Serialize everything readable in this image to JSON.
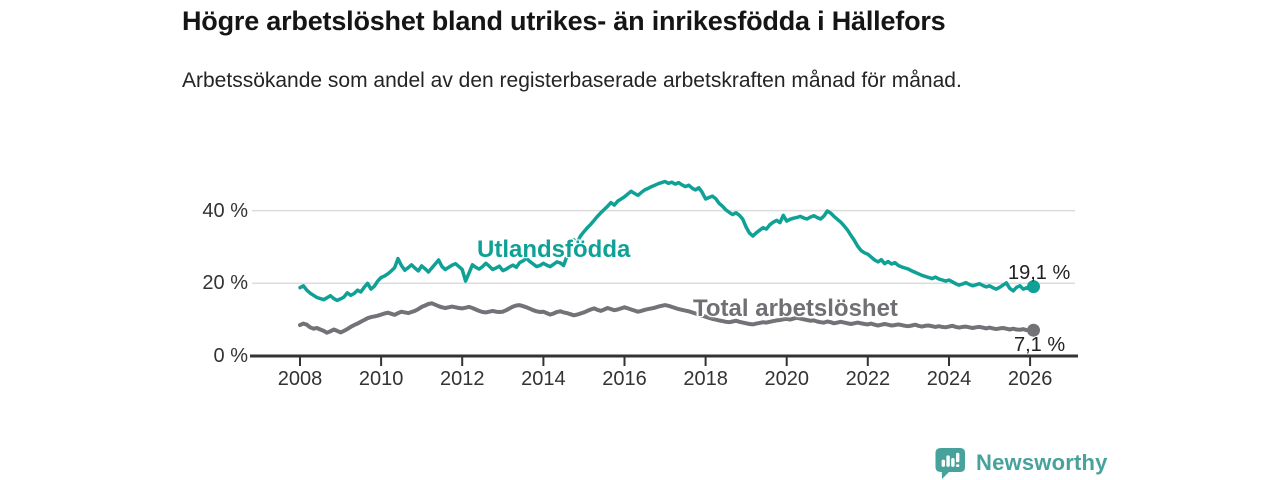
{
  "header": {
    "title": "Högre arbetslöshet bland utrikes- än inrikesfödda i Hällefors",
    "subtitle": "Arbetssökande som andel av den registerbaserade arbetskraften månad för månad."
  },
  "chart_data": {
    "type": "line",
    "title": "Högre arbetslöshet bland utrikes- än inrikesfödda i Hällefors",
    "subtitle": "Arbetssökande som andel av den registerbaserade arbetskraften månad för månad.",
    "x_axis": {
      "unit": "year",
      "range": [
        2008,
        2026.4
      ],
      "ticks": [
        2008,
        2010,
        2012,
        2014,
        2016,
        2018,
        2020,
        2022,
        2024,
        2026
      ]
    },
    "y_axis": {
      "unit": "%",
      "range": [
        0,
        52
      ],
      "gridlines": [
        20,
        40
      ],
      "ticks": [
        {
          "value": 0,
          "label": "0 %"
        },
        {
          "value": 20,
          "label": "20 %"
        },
        {
          "value": 40,
          "label": "40 %"
        }
      ]
    },
    "legend_position": "inline-labels",
    "series": [
      {
        "name": "Utlandsfödda",
        "label": "Utlandsfödda",
        "color": "#10a196",
        "line_width": 3.5,
        "start_year": 2008,
        "interval_months": 1,
        "end_value": 19.1,
        "end_label": "19,1 %",
        "values": [
          18.8,
          19.3,
          18.1,
          17.3,
          16.7,
          16.1,
          15.8,
          15.5,
          16.0,
          16.6,
          15.8,
          15.3,
          15.7,
          16.2,
          17.4,
          16.7,
          17.2,
          18.1,
          17.6,
          18.9,
          20.0,
          18.4,
          19.2,
          20.6,
          21.6,
          22.0,
          22.6,
          23.4,
          24.3,
          26.8,
          24.9,
          23.6,
          24.3,
          25.1,
          24.2,
          23.4,
          24.8,
          24.0,
          23.1,
          24.2,
          25.3,
          26.4,
          24.6,
          23.8,
          24.4,
          25.0,
          25.4,
          24.6,
          23.8,
          20.6,
          22.8,
          25.1,
          24.4,
          23.9,
          24.6,
          25.5,
          24.7,
          23.8,
          24.2,
          24.7,
          23.5,
          23.9,
          24.5,
          25.0,
          24.4,
          25.7,
          26.2,
          26.9,
          26.0,
          25.3,
          24.6,
          24.9,
          25.5,
          25.0,
          24.6,
          25.2,
          25.9,
          25.6,
          24.9,
          27.5,
          30.5,
          32.0,
          31.2,
          33.0,
          34.2,
          35.3,
          36.2,
          37.3,
          38.4,
          39.4,
          40.3,
          41.2,
          42.2,
          41.5,
          42.6,
          43.2,
          43.8,
          44.6,
          45.3,
          44.7,
          44.2,
          45.0,
          45.7,
          46.1,
          46.6,
          47.0,
          47.4,
          47.7,
          48.0,
          47.5,
          47.8,
          47.3,
          47.7,
          47.1,
          46.6,
          47.0,
          46.2,
          45.7,
          46.3,
          45.0,
          43.2,
          43.6,
          44.0,
          43.3,
          42.0,
          41.2,
          40.2,
          39.5,
          38.9,
          39.4,
          38.7,
          37.6,
          35.4,
          33.8,
          33.0,
          33.9,
          34.6,
          35.3,
          34.9,
          36.1,
          36.8,
          37.3,
          36.7,
          38.7,
          37.1,
          37.6,
          37.9,
          38.1,
          38.4,
          38.0,
          37.7,
          38.2,
          38.6,
          38.1,
          37.7,
          38.5,
          39.9,
          39.3,
          38.4,
          37.6,
          36.8,
          35.8,
          34.6,
          33.2,
          31.8,
          30.2,
          29.0,
          28.4,
          28.0,
          27.2,
          26.4,
          25.9,
          26.5,
          25.4,
          26.0,
          25.3,
          25.7,
          24.9,
          24.5,
          24.2,
          23.9,
          23.4,
          23.0,
          22.6,
          22.2,
          21.9,
          21.6,
          21.3,
          21.7,
          21.2,
          20.9,
          20.6,
          20.9,
          20.4,
          19.9,
          19.5,
          19.8,
          20.2,
          19.7,
          19.3,
          19.6,
          19.9,
          19.4,
          19.0,
          19.3,
          18.8,
          18.4,
          18.9,
          19.5,
          20.1,
          18.6,
          17.9,
          18.9,
          19.3,
          18.4,
          18.8,
          18.5,
          19.1
        ]
      },
      {
        "name": "Total arbetslöshet",
        "label": "Total arbetslöshet",
        "color": "#737377",
        "line_width": 4,
        "start_year": 2008,
        "interval_months": 1,
        "end_value": 7.1,
        "end_label": "7,1 %",
        "values": [
          8.5,
          8.9,
          8.6,
          7.9,
          7.5,
          7.7,
          7.3,
          6.9,
          6.4,
          6.8,
          7.3,
          6.9,
          6.5,
          6.9,
          7.4,
          8.0,
          8.5,
          8.9,
          9.4,
          9.9,
          10.4,
          10.7,
          10.9,
          11.1,
          11.4,
          11.7,
          11.9,
          11.6,
          11.3,
          11.8,
          12.2,
          12.0,
          11.8,
          12.1,
          12.4,
          12.9,
          13.5,
          13.9,
          14.3,
          14.5,
          14.1,
          13.7,
          13.4,
          13.2,
          13.4,
          13.6,
          13.4,
          13.2,
          13.1,
          13.3,
          13.5,
          13.2,
          12.8,
          12.4,
          12.1,
          12.0,
          12.2,
          12.4,
          12.2,
          12.1,
          12.2,
          12.6,
          13.1,
          13.6,
          13.9,
          14.0,
          13.7,
          13.4,
          13.0,
          12.6,
          12.3,
          12.1,
          12.2,
          11.8,
          11.4,
          11.7,
          12.1,
          12.3,
          12.0,
          11.8,
          11.5,
          11.2,
          11.4,
          11.7,
          12.0,
          12.4,
          12.8,
          13.1,
          12.7,
          12.4,
          12.8,
          13.2,
          12.9,
          12.6,
          12.8,
          13.1,
          13.4,
          13.1,
          12.8,
          12.5,
          12.2,
          12.4,
          12.7,
          12.9,
          13.1,
          13.3,
          13.6,
          13.8,
          14.0,
          13.8,
          13.5,
          13.2,
          12.9,
          12.7,
          12.5,
          12.3,
          12.0,
          11.7,
          11.4,
          11.1,
          10.8,
          10.5,
          10.2,
          10.0,
          9.8,
          9.6,
          9.4,
          9.3,
          9.5,
          9.7,
          9.4,
          9.2,
          9.0,
          8.8,
          8.7,
          8.9,
          9.1,
          9.3,
          9.2,
          9.4,
          9.6,
          9.8,
          9.9,
          10.1,
          10.2,
          10.0,
          10.3,
          10.5,
          10.3,
          10.1,
          9.9,
          9.7,
          9.8,
          9.5,
          9.3,
          9.2,
          9.5,
          9.3,
          9.0,
          9.2,
          9.4,
          9.2,
          9.0,
          8.8,
          9.0,
          9.2,
          9.0,
          8.8,
          8.7,
          8.9,
          8.6,
          8.4,
          8.6,
          8.8,
          8.6,
          8.4,
          8.5,
          8.7,
          8.5,
          8.3,
          8.2,
          8.4,
          8.6,
          8.3,
          8.1,
          8.3,
          8.4,
          8.2,
          8.0,
          8.2,
          8.0,
          7.9,
          8.1,
          8.3,
          8.0,
          7.8,
          8.0,
          8.1,
          7.9,
          7.7,
          7.9,
          8.0,
          7.8,
          7.6,
          7.8,
          7.6,
          7.4,
          7.6,
          7.7,
          7.5,
          7.3,
          7.5,
          7.3,
          7.2,
          7.4,
          7.1,
          7.0,
          7.1
        ]
      }
    ]
  },
  "axis_colors": {
    "axis": "#333333",
    "gridline": "#dcdcdc",
    "tick_text": "#333333"
  },
  "branding": {
    "name": "Newsworthy",
    "color": "#47a29b"
  }
}
